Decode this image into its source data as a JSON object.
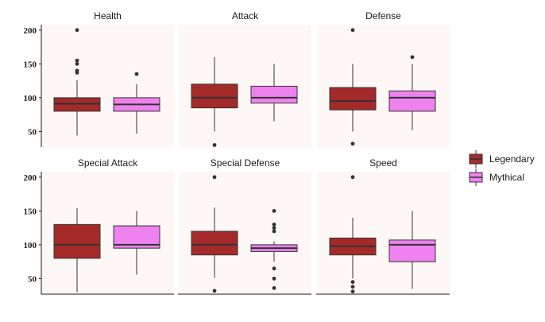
{
  "chart_data": {
    "type": "box",
    "y_ticks": [
      50,
      100,
      150,
      200
    ],
    "ylim": [
      27,
      208
    ],
    "facet_layout": "2 rows x 3 columns",
    "panel_background": "#fdf7f6",
    "legend": {
      "placement": "right",
      "entries": [
        {
          "name": "Legendary",
          "color": "#a52a2a"
        },
        {
          "name": "Mythical",
          "color": "#ee82ee"
        }
      ]
    },
    "facets": [
      {
        "title": "Health",
        "boxes": [
          {
            "group": "Legendary",
            "lower_whisker": 44,
            "q1": 80,
            "median": 91,
            "q3": 100,
            "upper_whisker": 126,
            "outliers": [
              200,
              155,
              150,
              140,
              137
            ]
          },
          {
            "group": "Mythical",
            "lower_whisker": 47,
            "q1": 80,
            "median": 90,
            "q3": 100,
            "upper_whisker": 120,
            "outliers": [
              135
            ]
          }
        ]
      },
      {
        "title": "Attack",
        "boxes": [
          {
            "group": "Legendary",
            "lower_whisker": 50,
            "q1": 85,
            "median": 100,
            "q3": 120,
            "upper_whisker": 160,
            "outliers": [
              30
            ]
          },
          {
            "group": "Mythical",
            "lower_whisker": 65,
            "q1": 92,
            "median": 100,
            "q3": 117,
            "upper_whisker": 150,
            "outliers": []
          }
        ]
      },
      {
        "title": "Defense",
        "boxes": [
          {
            "group": "Legendary",
            "lower_whisker": 50,
            "q1": 82,
            "median": 95,
            "q3": 115,
            "upper_whisker": 150,
            "outliers": [
              200,
              32
            ]
          },
          {
            "group": "Mythical",
            "lower_whisker": 52,
            "q1": 80,
            "median": 100,
            "q3": 110,
            "upper_whisker": 150,
            "outliers": [
              160
            ]
          }
        ]
      },
      {
        "title": "Special Attack",
        "boxes": [
          {
            "group": "Legendary",
            "lower_whisker": 30,
            "q1": 80,
            "median": 100,
            "q3": 130,
            "upper_whisker": 154,
            "outliers": []
          },
          {
            "group": "Mythical",
            "lower_whisker": 56,
            "q1": 95,
            "median": 100,
            "q3": 128,
            "upper_whisker": 150,
            "outliers": []
          }
        ]
      },
      {
        "title": "Special Defense",
        "boxes": [
          {
            "group": "Legendary",
            "lower_whisker": 51,
            "q1": 85,
            "median": 100,
            "q3": 120,
            "upper_whisker": 155,
            "outliers": [
              200,
              32
            ]
          },
          {
            "group": "Mythical",
            "lower_whisker": 75,
            "q1": 90,
            "median": 95,
            "q3": 100,
            "upper_whisker": 105,
            "outliers": [
              150,
              130,
              125,
              120,
              65,
              50,
              36
            ]
          }
        ]
      },
      {
        "title": "Speed",
        "boxes": [
          {
            "group": "Legendary",
            "lower_whisker": 50,
            "q1": 85,
            "median": 98,
            "q3": 110,
            "upper_whisker": 140,
            "outliers": [
              200,
              45,
              38,
              31
            ]
          },
          {
            "group": "Mythical",
            "lower_whisker": 35,
            "q1": 75,
            "median": 100,
            "q3": 107,
            "upper_whisker": 150,
            "outliers": []
          }
        ]
      }
    ]
  }
}
